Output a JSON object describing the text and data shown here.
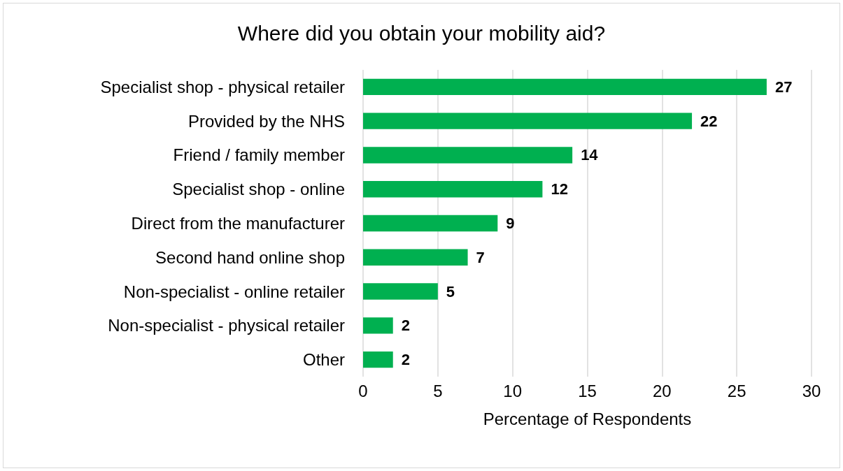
{
  "chart_data": {
    "type": "bar",
    "orientation": "horizontal",
    "title": "Where did you obtain your mobility aid?",
    "xlabel": "Percentage of Respondents",
    "categories": [
      "Specialist shop - physical retailer",
      "Provided by the NHS",
      "Friend / family member",
      "Specialist shop - online",
      "Direct from the manufacturer",
      "Second hand online shop",
      "Non-specialist - online retailer",
      "Non-specialist - physical retailer",
      "Other"
    ],
    "values": [
      27,
      22,
      14,
      12,
      9,
      7,
      5,
      2,
      2
    ],
    "color": "#00b050",
    "xlim": [
      0,
      30
    ],
    "xticks": [
      0,
      5,
      10,
      15,
      20,
      25,
      30
    ],
    "grid": "x",
    "data_labels": true
  }
}
